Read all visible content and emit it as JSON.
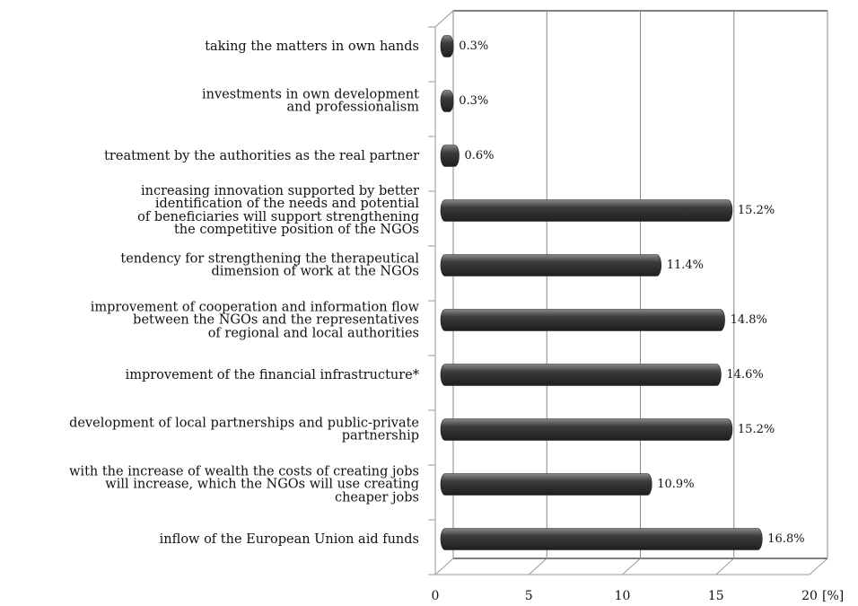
{
  "chart_data": {
    "type": "bar3d_horizontal",
    "categories": [
      "taking the matters in own hands",
      "investments in own development\nand professionalism",
      "treatment by the authorities as the real partner",
      "increasing innovation supported by better\nidentification of the needs and potential\nof beneficiaries will support strengthening\nthe competitive position of the NGOs",
      "tendency for strengthening the therapeutical\ndimension of work at the NGOs",
      "improvement of cooperation and information flow\nbetween the NGOs and the representatives\nof regional and local authorities",
      "improvement of the financial infrastructure*",
      "development of local partnerships and public-private\npartnership",
      "with the increase of wealth the costs of creating jobs\nwill increase, which the NGOs will use creating\ncheaper jobs",
      "inflow of the European Union aid funds"
    ],
    "values": [
      0.3,
      0.3,
      0.6,
      15.2,
      11.4,
      14.8,
      14.6,
      15.2,
      10.9,
      16.8
    ],
    "value_labels": [
      "0.3%",
      "0.3%",
      "0.6%",
      "15.2%",
      "11.4%",
      "14.8%",
      "14.6%",
      "15.2%",
      "10.9%",
      "16.8%"
    ],
    "color": "#4a4a4a",
    "xlim": [
      0,
      20
    ],
    "xticks": [
      0,
      5,
      10,
      15,
      20
    ],
    "x_axis_label": "[%]",
    "grid": true
  }
}
